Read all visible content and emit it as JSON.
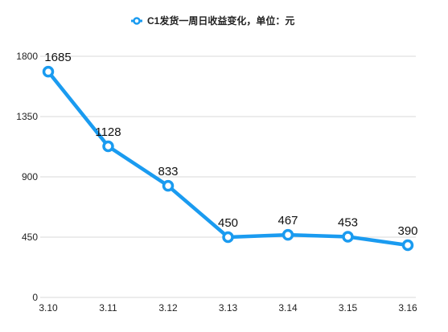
{
  "chart_data": {
    "type": "line",
    "title": "",
    "xlabel": "",
    "ylabel": "",
    "categories": [
      "3.10",
      "3.11",
      "3.12",
      "3.13",
      "3.14",
      "3.15",
      "3.16"
    ],
    "series": [
      {
        "name": "C1发货一周日收益变化，单位：元",
        "values": [
          1685,
          1128,
          833,
          450,
          467,
          453,
          390
        ]
      }
    ],
    "data_labels": [
      "1685",
      "1128",
      "833",
      "450",
      "467",
      "453",
      "390"
    ],
    "ylim": [
      0,
      1800
    ],
    "yticks": [
      0,
      450,
      900,
      1350,
      1800
    ],
    "grid": true,
    "legend_position": "top-center",
    "colors": {
      "line": "#1a9bf0",
      "marker_fill": "#ffffff",
      "grid": "#d9d9d9"
    }
  }
}
